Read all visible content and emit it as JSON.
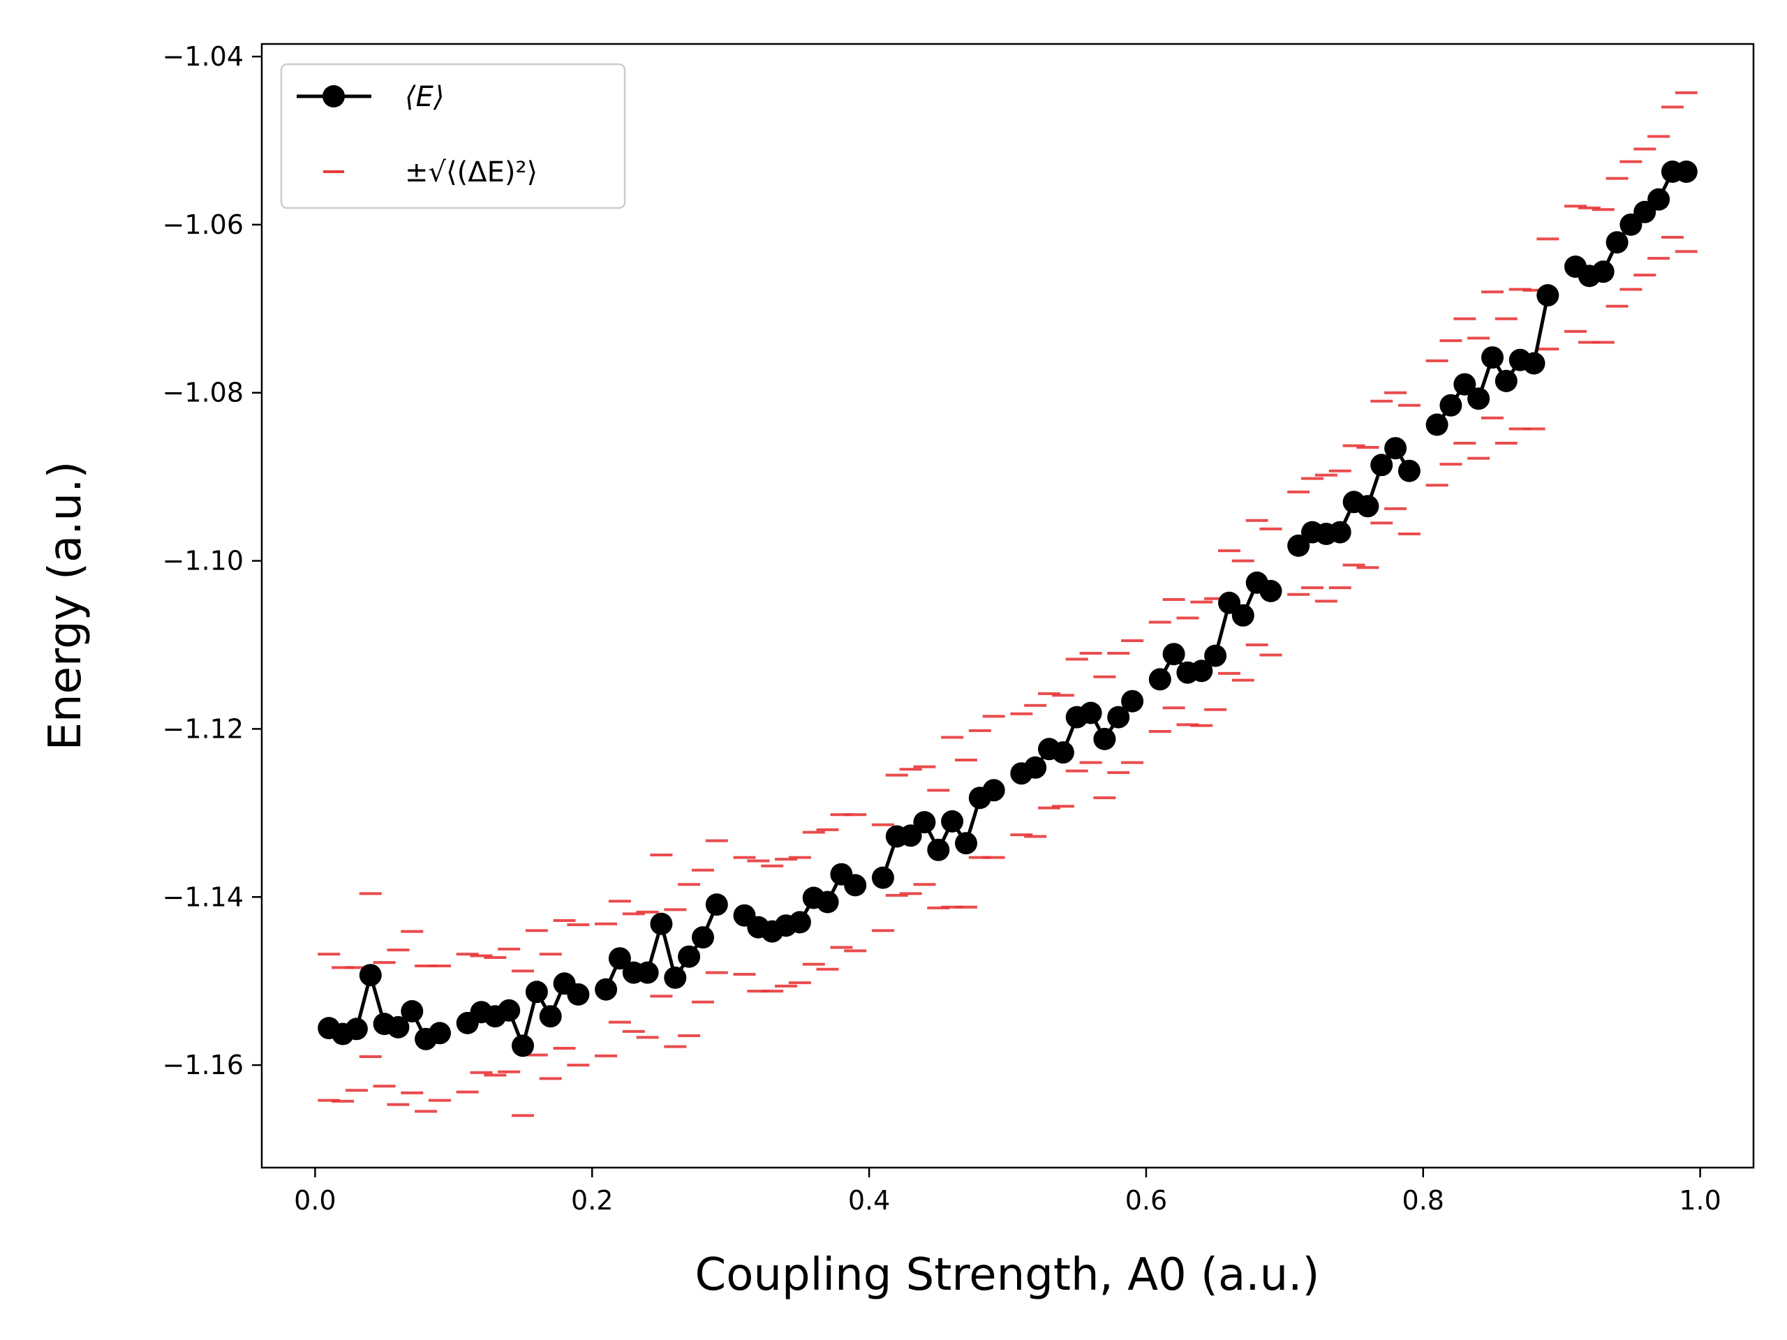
{
  "chart_data": {
    "type": "line",
    "xlabel": "Coupling Strength, A0 (a.u.)",
    "ylabel": "Energy (a.u.)",
    "xlim": [
      -0.0385,
      1.0385
    ],
    "ylim": [
      -1.1722,
      -1.0385
    ],
    "x_ticks": [
      0.0,
      0.2,
      0.4,
      0.6,
      0.8,
      1.0
    ],
    "x_tick_labels": [
      "0.0",
      "0.2",
      "0.4",
      "0.6",
      "0.8",
      "1.0"
    ],
    "y_ticks": [
      -1.16,
      -1.14,
      -1.12,
      -1.1,
      -1.08,
      -1.06,
      -1.04
    ],
    "y_tick_labels": [
      "−1.16",
      "−1.14",
      "−1.12",
      "−1.10",
      "−1.08",
      "−1.06",
      "−1.04"
    ],
    "grid": false,
    "legend_position": "top-left",
    "legend": [
      {
        "label": "⟨E⟩",
        "style": "black line with circle markers"
      },
      {
        "label": "±√⟨(ΔE)²⟩",
        "style": "red dash markers"
      }
    ],
    "series": [
      {
        "name": "⟨E⟩",
        "color": "#000000",
        "marker": "circle",
        "x": [
          0.01,
          0.02,
          0.03,
          0.04,
          0.05,
          0.06,
          0.07,
          0.08,
          0.09,
          0.11,
          0.12,
          0.13,
          0.14,
          0.15,
          0.16,
          0.17,
          0.18,
          0.19,
          0.21,
          0.22,
          0.23,
          0.24,
          0.25,
          0.26,
          0.27,
          0.28,
          0.29,
          0.31,
          0.32,
          0.33,
          0.34,
          0.35,
          0.36,
          0.37,
          0.38,
          0.39,
          0.41,
          0.42,
          0.43,
          0.44,
          0.45,
          0.46,
          0.47,
          0.48,
          0.49,
          0.51,
          0.52,
          0.53,
          0.54,
          0.55,
          0.56,
          0.57,
          0.58,
          0.59,
          0.61,
          0.62,
          0.63,
          0.64,
          0.65,
          0.66,
          0.67,
          0.68,
          0.69,
          0.71,
          0.72,
          0.73,
          0.74,
          0.75,
          0.76,
          0.77,
          0.78,
          0.79,
          0.81,
          0.82,
          0.83,
          0.84,
          0.85,
          0.86,
          0.87,
          0.88,
          0.89,
          0.91,
          0.92,
          0.93,
          0.94,
          0.95,
          0.96,
          0.97,
          0.98,
          0.99
        ],
        "values": [
          -1.1556,
          -1.1563,
          -1.1557,
          -1.1493,
          -1.1551,
          -1.1555,
          -1.1536,
          -1.1569,
          -1.1562,
          -1.155,
          -1.1537,
          -1.1542,
          -1.1535,
          -1.1577,
          -1.1513,
          -1.1542,
          -1.1503,
          -1.1516,
          -1.151,
          -1.1473,
          -1.149,
          -1.149,
          -1.1432,
          -1.1496,
          -1.1471,
          -1.1448,
          -1.1409,
          -1.1422,
          -1.1436,
          -1.1441,
          -1.1434,
          -1.143,
          -1.1401,
          -1.1406,
          -1.1373,
          -1.1386,
          -1.1377,
          -1.1328,
          -1.1327,
          -1.1311,
          -1.1344,
          -1.131,
          -1.1336,
          -1.1282,
          -1.1273,
          -1.1253,
          -1.1246,
          -1.1224,
          -1.1228,
          -1.1186,
          -1.1181,
          -1.1212,
          -1.1186,
          -1.1167,
          -1.1141,
          -1.1111,
          -1.1133,
          -1.1131,
          -1.1113,
          -1.105,
          -1.1065,
          -1.1026,
          -1.1036,
          -1.0982,
          -1.0966,
          -1.0968,
          -1.0966,
          -1.093,
          -1.0935,
          -1.0886,
          -1.0866,
          -1.0893,
          -1.0838,
          -1.0815,
          -1.079,
          -1.0807,
          -1.0758,
          -1.0786,
          -1.0761,
          -1.0765,
          -1.0684,
          -1.065,
          -1.0661,
          -1.0656,
          -1.0621,
          -1.06,
          -1.0585,
          -1.057,
          -1.0537,
          -1.0537
        ]
      },
      {
        "name": "±√⟨(ΔE)²⟩",
        "color": "#e8393a",
        "marker": "dash",
        "x": [
          0.01,
          0.01,
          0.02,
          0.02,
          0.03,
          0.03,
          0.04,
          0.04,
          0.05,
          0.05,
          0.06,
          0.06,
          0.07,
          0.07,
          0.08,
          0.08,
          0.09,
          0.09,
          0.11,
          0.11,
          0.12,
          0.12,
          0.13,
          0.13,
          0.14,
          0.14,
          0.15,
          0.15,
          0.16,
          0.16,
          0.17,
          0.17,
          0.18,
          0.18,
          0.19,
          0.19,
          0.21,
          0.21,
          0.22,
          0.22,
          0.23,
          0.23,
          0.24,
          0.24,
          0.25,
          0.25,
          0.26,
          0.26,
          0.27,
          0.27,
          0.28,
          0.28,
          0.29,
          0.29,
          0.31,
          0.31,
          0.32,
          0.32,
          0.33,
          0.33,
          0.34,
          0.34,
          0.35,
          0.35,
          0.36,
          0.36,
          0.37,
          0.37,
          0.38,
          0.38,
          0.39,
          0.39,
          0.41,
          0.41,
          0.42,
          0.42,
          0.43,
          0.43,
          0.44,
          0.44,
          0.45,
          0.45,
          0.46,
          0.46,
          0.47,
          0.47,
          0.48,
          0.48,
          0.49,
          0.49,
          0.51,
          0.51,
          0.52,
          0.52,
          0.53,
          0.53,
          0.54,
          0.54,
          0.55,
          0.55,
          0.56,
          0.56,
          0.57,
          0.57,
          0.58,
          0.58,
          0.59,
          0.59,
          0.61,
          0.61,
          0.62,
          0.62,
          0.63,
          0.63,
          0.64,
          0.64,
          0.65,
          0.65,
          0.66,
          0.66,
          0.67,
          0.67,
          0.68,
          0.68,
          0.69,
          0.69,
          0.71,
          0.71,
          0.72,
          0.72,
          0.73,
          0.73,
          0.74,
          0.74,
          0.75,
          0.75,
          0.76,
          0.76,
          0.77,
          0.77,
          0.78,
          0.78,
          0.79,
          0.79,
          0.81,
          0.81,
          0.82,
          0.82,
          0.83,
          0.83,
          0.84,
          0.84,
          0.85,
          0.85,
          0.86,
          0.86,
          0.87,
          0.87,
          0.88,
          0.88,
          0.89,
          0.89,
          0.91,
          0.91,
          0.92,
          0.92,
          0.93,
          0.93,
          0.94,
          0.94,
          0.95,
          0.95,
          0.96,
          0.96,
          0.97,
          0.97,
          0.98,
          0.98,
          0.99,
          0.99
        ],
        "values": [
          -1.1468,
          -1.1642,
          -1.1484,
          -1.1643,
          -1.1484,
          -1.163,
          -1.1396,
          -1.159,
          -1.1478,
          -1.1625,
          -1.1463,
          -1.1647,
          -1.1441,
          -1.1633,
          -1.1482,
          -1.1655,
          -1.1482,
          -1.1642,
          -1.1468,
          -1.1632,
          -1.147,
          -1.1609,
          -1.1472,
          -1.1612,
          -1.1462,
          -1.1608,
          -1.1488,
          -1.166,
          -1.144,
          -1.1588,
          -1.1468,
          -1.1616,
          -1.1428,
          -1.158,
          -1.1433,
          -1.16,
          -1.1432,
          -1.1589,
          -1.1405,
          -1.1549,
          -1.142,
          -1.156,
          -1.1418,
          -1.1567,
          -1.135,
          -1.1518,
          -1.1415,
          -1.1578,
          -1.1385,
          -1.1565,
          -1.1368,
          -1.1525,
          -1.1333,
          -1.149,
          -1.1353,
          -1.1492,
          -1.1357,
          -1.1512,
          -1.1363,
          -1.1512,
          -1.1355,
          -1.1506,
          -1.1353,
          -1.1502,
          -1.1323,
          -1.148,
          -1.132,
          -1.1486,
          -1.1302,
          -1.146,
          -1.1302,
          -1.1464,
          -1.1314,
          -1.144,
          -1.1255,
          -1.1398,
          -1.1248,
          -1.1396,
          -1.1245,
          -1.1385,
          -1.1273,
          -1.1413,
          -1.121,
          -1.1412,
          -1.1237,
          -1.1412,
          -1.1202,
          -1.1353,
          -1.1185,
          -1.1353,
          -1.1182,
          -1.1326,
          -1.1172,
          -1.1328,
          -1.1158,
          -1.1294,
          -1.116,
          -1.1292,
          -1.1117,
          -1.125,
          -1.111,
          -1.124,
          -1.1138,
          -1.1282,
          -1.111,
          -1.1252,
          -1.1095,
          -1.124,
          -1.1073,
          -1.1203,
          -1.1046,
          -1.1175,
          -1.1068,
          -1.1195,
          -1.1049,
          -1.1196,
          -1.1045,
          -1.1177,
          -1.0988,
          -1.1134,
          -1.1,
          -1.1142,
          -1.0952,
          -1.11,
          -1.0962,
          -1.1112,
          -1.0918,
          -1.104,
          -1.0902,
          -1.1032,
          -1.0898,
          -1.1048,
          -1.0893,
          -1.1032,
          -1.0863,
          -1.1005,
          -1.0865,
          -1.1008,
          -1.081,
          -1.0955,
          -1.08,
          -1.0938,
          -1.0815,
          -1.0968,
          -1.0762,
          -1.091,
          -1.0738,
          -1.0885,
          -1.0712,
          -1.086,
          -1.0735,
          -1.0878,
          -1.068,
          -1.083,
          -1.0712,
          -1.086,
          -1.0677,
          -1.0843,
          -1.0678,
          -1.0843,
          -1.0617,
          -1.0748,
          -1.0578,
          -1.0727,
          -1.058,
          -1.074,
          -1.0582,
          -1.074,
          -1.0545,
          -1.0697,
          -1.0525,
          -1.0677,
          -1.051,
          -1.066,
          -1.0495,
          -1.064,
          -1.046,
          -1.0615,
          -1.0443,
          -1.0632
        ]
      }
    ]
  }
}
